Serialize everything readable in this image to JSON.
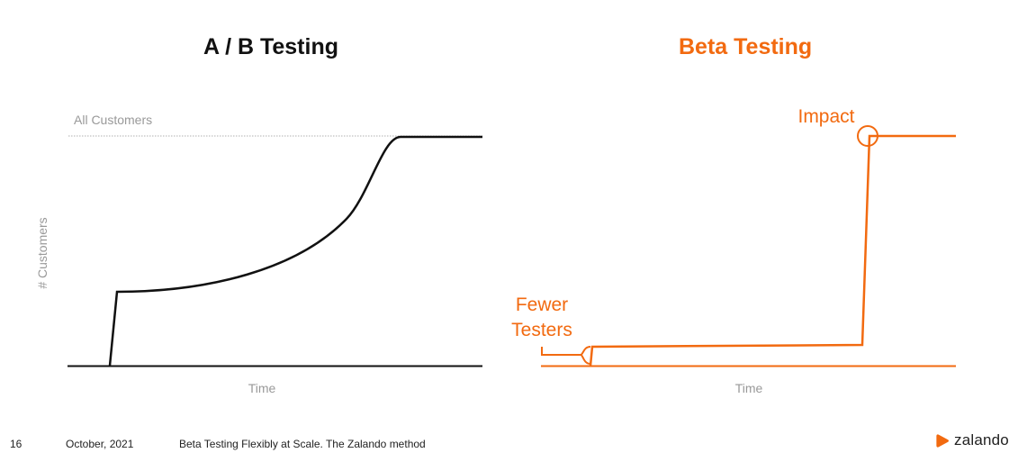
{
  "ab_panel": {
    "title": "A / B Testing",
    "reference_label": "All Customers",
    "y_axis_label": "# Customers",
    "x_axis_label": "Time"
  },
  "beta_panel": {
    "title": "Beta Testing",
    "x_axis_label": "Time",
    "annotation_impact": "Impact",
    "annotation_fewer_line1": "Fewer",
    "annotation_fewer_line2": "Testers"
  },
  "footer": {
    "page_number": "16",
    "date": "October, 2021",
    "presentation_title": "Beta Testing Flexibly at Scale. The Zalando method"
  },
  "brand": {
    "name": "zalando",
    "logo_icon": "zalando-play-icon"
  },
  "colors": {
    "accent": "#f26a10",
    "ink": "#111111",
    "muted": "#999999",
    "reference_line": "#b0b0b0"
  }
}
